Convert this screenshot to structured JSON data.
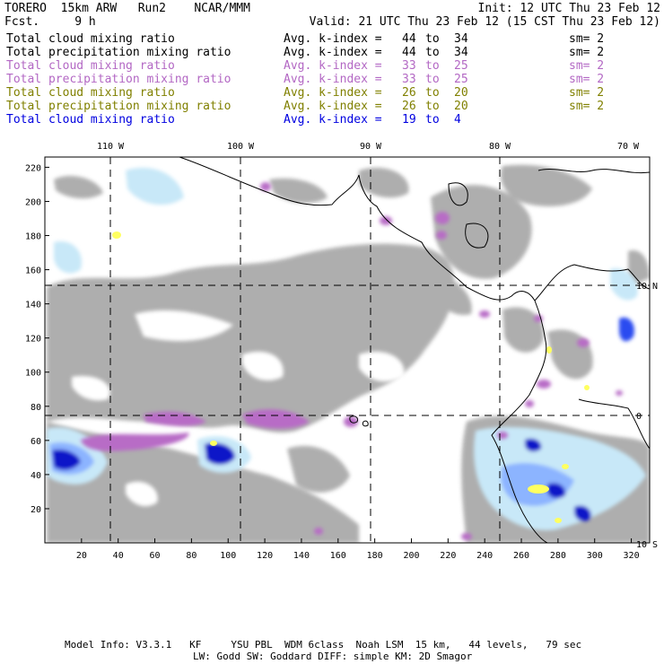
{
  "header": {
    "line1_left": "TORERO  15km ARW   Run2    NCAR/MMM",
    "line1_right": "Init: 12 UTC Thu 23 Feb 12",
    "line2_left": "Fcst.     9 h",
    "line2_right": "Valid: 21 UTC Thu 23 Feb 12 (15 CST Thu 23 Feb 12)"
  },
  "colors": {
    "black": "#000000",
    "purple": "#b368c4",
    "olive": "#808000",
    "blue": "#0000e0",
    "gray_field": "#a8a8a8",
    "purple_field": "#b86cc6",
    "blue_light": "#c8e8f8",
    "blue_mid": "#8cb4ff",
    "blue_dark": "#0a14c8",
    "yellow": "#ffff60"
  },
  "legend": [
    {
      "label": "Total cloud mixing ratio",
      "avg": "Avg. k-index =",
      "from": "44",
      "to_word": "to",
      "to": "34",
      "sm": "sm= 2",
      "color": "#000000"
    },
    {
      "label": "Total precipitation mixing ratio",
      "avg": "Avg. k-index =",
      "from": "44",
      "to_word": "to",
      "to": "34",
      "sm": "sm= 2",
      "color": "#000000"
    },
    {
      "label": "Total cloud mixing ratio",
      "avg": "Avg. k-index =",
      "from": "33",
      "to_word": "to",
      "to": "25",
      "sm": "sm= 2",
      "color": "#b368c4"
    },
    {
      "label": "Total precipitation mixing ratio",
      "avg": "Avg. k-index =",
      "from": "33",
      "to_word": "to",
      "to": "25",
      "sm": "sm= 2",
      "color": "#b368c4"
    },
    {
      "label": "Total cloud mixing ratio",
      "avg": "Avg. k-index =",
      "from": "26",
      "to_word": "to",
      "to": "20",
      "sm": "sm= 2",
      "color": "#808000"
    },
    {
      "label": "Total precipitation mixing ratio",
      "avg": "Avg. k-index =",
      "from": "26",
      "to_word": "to",
      "to": "20",
      "sm": "sm= 2",
      "color": "#808000"
    },
    {
      "label": "Total cloud mixing ratio",
      "avg": "Avg. k-index =",
      "from": "19",
      "to_word": "to",
      "to": "4",
      "sm": "",
      "color": "#0000e0"
    }
  ],
  "map": {
    "lon_labels": [
      "110 W",
      "100 W",
      "90 W",
      "80 W",
      "70 W"
    ],
    "lat_labels": [
      "10 N",
      "0",
      "10 S"
    ],
    "grid_x_range": [
      0,
      330
    ],
    "grid_y_range": [
      0,
      226
    ],
    "x_ticks": [
      "20",
      "40",
      "60",
      "80",
      "100",
      "120",
      "140",
      "160",
      "180",
      "200",
      "220",
      "240",
      "260",
      "280",
      "300",
      "320"
    ],
    "y_ticks": [
      "20",
      "40",
      "60",
      "80",
      "100",
      "120",
      "140",
      "160",
      "180",
      "200",
      "220"
    ]
  },
  "footer": {
    "line1": "Model Info: V3.3.1   KF     YSU PBL  WDM 6class  Noah LSM  15 km,   44 levels,   79 sec",
    "line2": "LW: Godd SW: Goddard DIFF: simple KM: 2D Smagor"
  }
}
